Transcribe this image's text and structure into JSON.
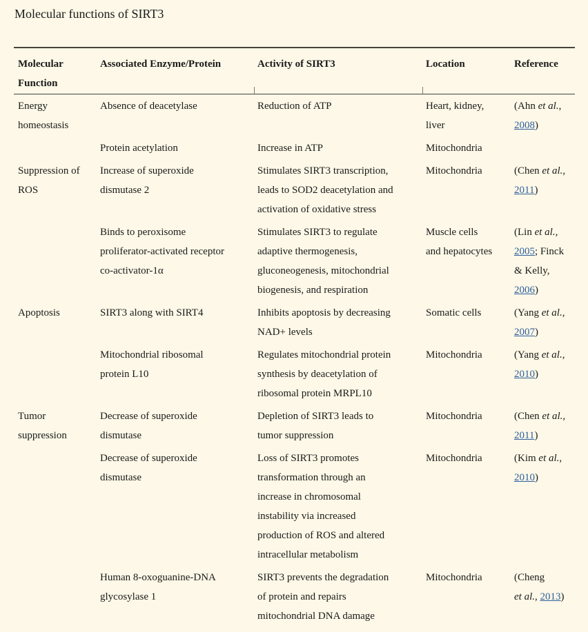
{
  "colors": {
    "background": "#fdf8e7",
    "text": "#1a1a1a",
    "link": "#2e5e9e",
    "table_rule": "#45453c"
  },
  "title": "Molecular functions of SIRT3",
  "table": {
    "headers": [
      "Molecular\nFunction",
      "Associated Enzyme/Protein",
      "Activity of SIRT3",
      "Location",
      "Reference"
    ],
    "rows": [
      {
        "function": "Energy\nhomeostasis",
        "enzyme": "Absence of deacetylase",
        "activity": "Reduction of ATP",
        "location": "Heart, kidney,\nliver",
        "reference": [
          {
            "text": "(Ahn ",
            "style": "normal"
          },
          {
            "text": "et al.",
            "style": "italic"
          },
          {
            "text": ",\n",
            "style": "normal"
          },
          {
            "text": "2008",
            "style": "link"
          },
          {
            "text": ")",
            "style": "normal"
          }
        ]
      },
      {
        "function": "",
        "enzyme": "Protein acetylation",
        "activity": "Increase in ATP",
        "location": "Mitochondria",
        "reference": []
      },
      {
        "function": "Suppression of\nROS",
        "enzyme": "Increase of superoxide\ndismutase 2",
        "activity": "Stimulates SIRT3 transcription,\nleads to SOD2 deacetylation and\nactivation of oxidative stress",
        "location": "Mitochondria",
        "reference": [
          {
            "text": "(Chen ",
            "style": "normal"
          },
          {
            "text": "et al.",
            "style": "italic"
          },
          {
            "text": ",\n",
            "style": "normal"
          },
          {
            "text": "2011",
            "style": "link"
          },
          {
            "text": ")",
            "style": "normal"
          }
        ]
      },
      {
        "function": "",
        "enzyme": "Binds to peroxisome\nproliferator-activated receptor\nco-activator-1α",
        "activity": "Stimulates SIRT3 to regulate\nadaptive thermogenesis,\ngluconeogenesis, mitochondrial\nbiogenesis, and respiration",
        "location": "Muscle cells\nand hepatocytes",
        "reference": [
          {
            "text": "(Lin ",
            "style": "normal"
          },
          {
            "text": "et al.",
            "style": "italic"
          },
          {
            "text": ",\n",
            "style": "normal"
          },
          {
            "text": "2005",
            "style": "link"
          },
          {
            "text": "; Finck\n& Kelly,\n",
            "style": "normal"
          },
          {
            "text": "2006",
            "style": "link"
          },
          {
            "text": ")",
            "style": "normal"
          }
        ]
      },
      {
        "function": "Apoptosis",
        "enzyme": "SIRT3 along with SIRT4",
        "activity": "Inhibits apoptosis by decreasing\nNAD+ levels",
        "location": "Somatic cells",
        "reference": [
          {
            "text": "(Yang ",
            "style": "normal"
          },
          {
            "text": "et al.",
            "style": "italic"
          },
          {
            "text": ",\n",
            "style": "normal"
          },
          {
            "text": "2007",
            "style": "link"
          },
          {
            "text": ")",
            "style": "normal"
          }
        ]
      },
      {
        "function": "",
        "enzyme": "Mitochondrial ribosomal\nprotein L10",
        "activity": "Regulates mitochondrial protein\nsynthesis by deacetylation of\nribosomal protein MRPL10",
        "location": "Mitochondria",
        "reference": [
          {
            "text": "(Yang ",
            "style": "normal"
          },
          {
            "text": "et al.",
            "style": "italic"
          },
          {
            "text": ",\n",
            "style": "normal"
          },
          {
            "text": "2010",
            "style": "link"
          },
          {
            "text": ")",
            "style": "normal"
          }
        ]
      },
      {
        "function": "Tumor\nsuppression",
        "enzyme": "Decrease of superoxide\ndismutase",
        "activity": "Depletion of SIRT3 leads to\ntumor suppression",
        "location": "Mitochondria",
        "reference": [
          {
            "text": "(Chen ",
            "style": "normal"
          },
          {
            "text": "et al.",
            "style": "italic"
          },
          {
            "text": ",\n",
            "style": "normal"
          },
          {
            "text": "2011",
            "style": "link"
          },
          {
            "text": ")",
            "style": "normal"
          }
        ]
      },
      {
        "function": "",
        "enzyme": "Decrease of superoxide\ndismutase",
        "activity": "Loss of SIRT3 promotes\ntransformation through an\nincrease in chromosomal\ninstability via increased\nproduction of ROS and altered\nintracellular metabolism",
        "location": "Mitochondria",
        "reference": [
          {
            "text": "(Kim ",
            "style": "normal"
          },
          {
            "text": "et al.",
            "style": "italic"
          },
          {
            "text": ",\n",
            "style": "normal"
          },
          {
            "text": "2010",
            "style": "link"
          },
          {
            "text": ")",
            "style": "normal"
          }
        ]
      },
      {
        "function": "",
        "enzyme": "Human 8-oxoguanine-DNA\nglycosylase 1",
        "activity": "SIRT3 prevents the degradation\nof protein and repairs\nmitochondrial DNA damage",
        "location": "Mitochondria",
        "reference": [
          {
            "text": "(Cheng\n",
            "style": "normal"
          },
          {
            "text": "et al.",
            "style": "italic"
          },
          {
            "text": ", ",
            "style": "normal"
          },
          {
            "text": "2013",
            "style": "link"
          },
          {
            "text": ")",
            "style": "normal"
          }
        ]
      }
    ]
  }
}
